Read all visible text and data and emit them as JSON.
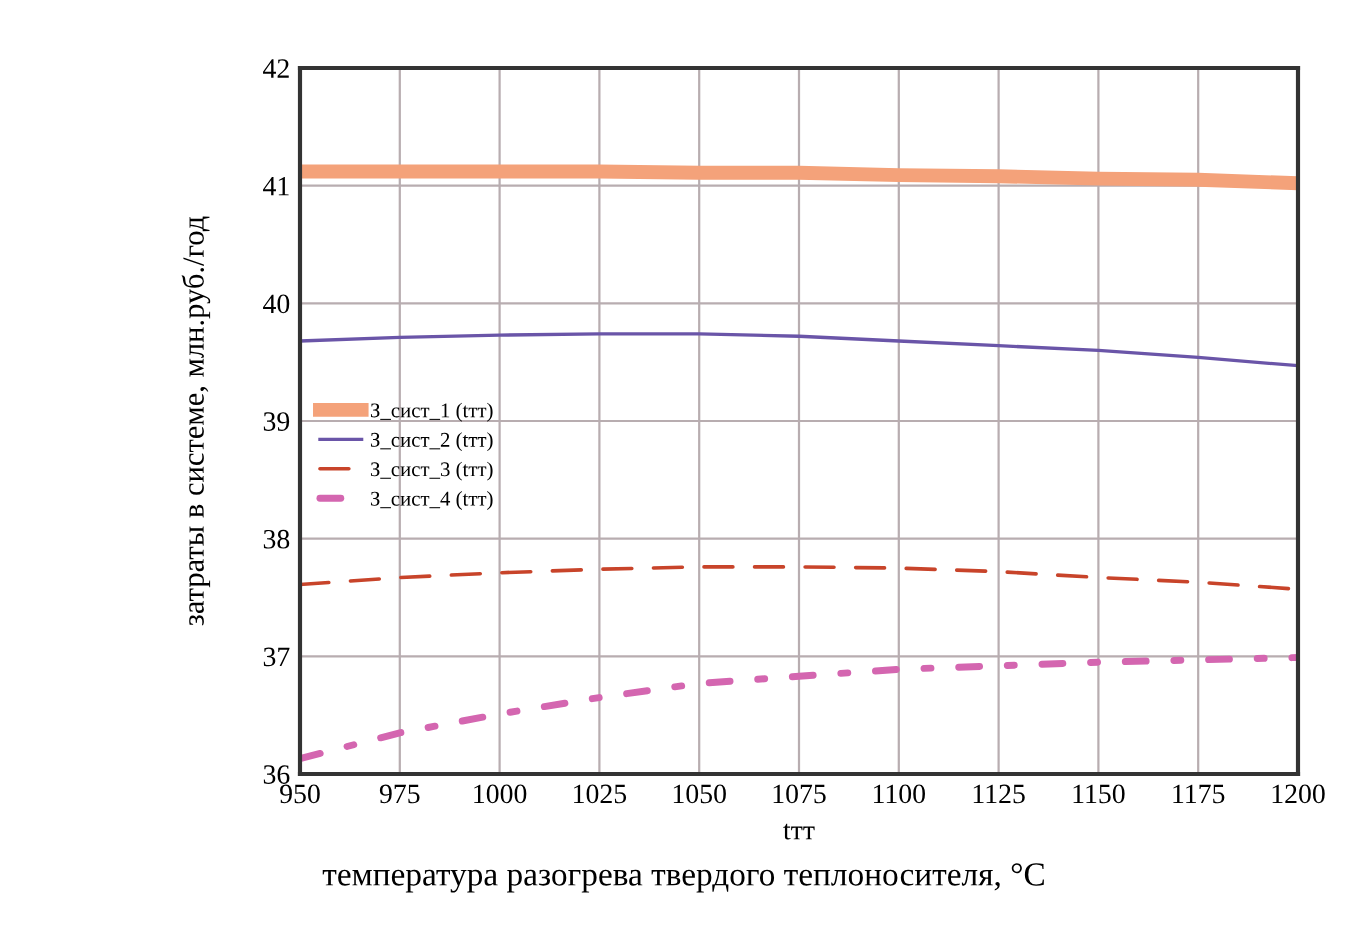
{
  "chart_data": {
    "type": "line",
    "xlabel": "tтт",
    "ylabel": "затраты в системе, млн.руб./год",
    "annotations": [
      "температура разогрева твердого теплоносителя, °C"
    ],
    "x": [
      950,
      975,
      1000,
      1025,
      1050,
      1075,
      1100,
      1125,
      1150,
      1175,
      1200
    ],
    "series": [
      {
        "name": "З_сист_1 (tтт)",
        "color": "#f4a27a",
        "line_style": "solid",
        "values": [
          41.12,
          41.12,
          41.12,
          41.12,
          41.11,
          41.11,
          41.09,
          41.08,
          41.06,
          41.05,
          41.02
        ]
      },
      {
        "name": "З_сист_2 (tтт)",
        "color": "#6a55a8",
        "line_style": "solid",
        "values": [
          39.68,
          39.71,
          39.73,
          39.74,
          39.74,
          39.72,
          39.68,
          39.64,
          39.6,
          39.54,
          39.47
        ]
      },
      {
        "name": "З_сист_3 (tтт)",
        "color": "#c8442a",
        "line_style": "dashed",
        "values": [
          37.61,
          37.67,
          37.71,
          37.74,
          37.76,
          37.76,
          37.75,
          37.72,
          37.67,
          37.63,
          37.57
        ]
      },
      {
        "name": "З_сист_4 (tтт)",
        "color": "#d466b0",
        "line_style": "dashdot",
        "values": [
          36.13,
          36.35,
          36.51,
          36.65,
          36.77,
          36.83,
          36.89,
          36.92,
          36.95,
          36.97,
          36.99
        ]
      }
    ],
    "xlim": [
      950,
      1200
    ],
    "xticks": [
      950,
      975,
      1000,
      1025,
      1050,
      1075,
      1100,
      1125,
      1150,
      1175,
      1200
    ],
    "ylim": [
      36,
      42
    ],
    "yticks": [
      36,
      37,
      38,
      39,
      40,
      41,
      42
    ],
    "grid": true,
    "legend": "left"
  }
}
